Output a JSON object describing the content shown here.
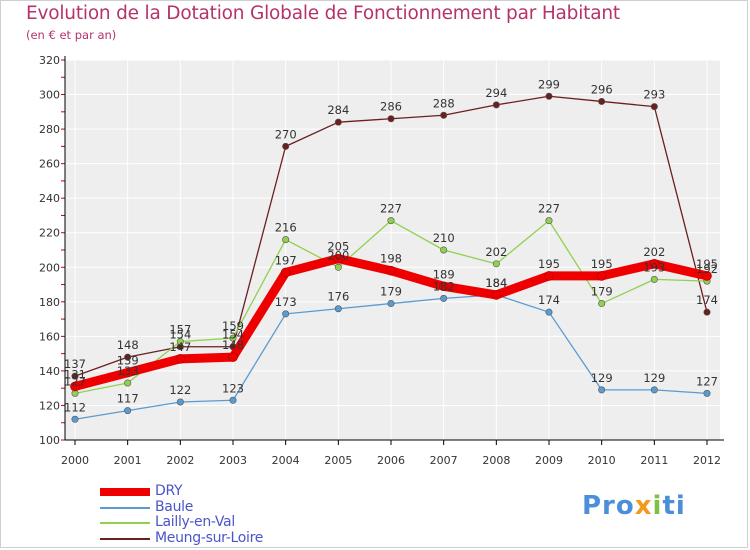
{
  "header": {
    "title": "Evolution de la Dotation Globale de Fonctionnement par Habitant",
    "subtitle": "(en € et par an)"
  },
  "brand": {
    "logo_parts": [
      {
        "text": "Pro",
        "color": "#4a8fd8"
      },
      {
        "text": "x",
        "color": "#f39a1c"
      },
      {
        "text": "i",
        "color": "#7fc243"
      },
      {
        "text": "ti",
        "color": "#4a8fd8"
      }
    ]
  },
  "colors": {
    "plot_background": "#eeeeee",
    "grid": "#ffffff",
    "axis": "#000000",
    "tick_text": "#333333",
    "label_text": "#333333"
  },
  "chart_data": {
    "type": "line",
    "title": "Evolution de la Dotation Globale de Fonctionnement par Habitant",
    "subtitle": "(en € et par an)",
    "xlabel": "",
    "ylabel": "",
    "x": [
      "2000",
      "2001",
      "2002",
      "2003",
      "2004",
      "2005",
      "2006",
      "2007",
      "2008",
      "2009",
      "2010",
      "2011",
      "2012"
    ],
    "ylim": [
      100,
      320
    ],
    "yticks": [
      100,
      120,
      140,
      160,
      180,
      200,
      220,
      240,
      260,
      280,
      300,
      320
    ],
    "grid": true,
    "legend_position": "bottom-left",
    "series": [
      {
        "name": "DRY",
        "color": "#ee0000",
        "style": "thick",
        "values": [
          131,
          139,
          147,
          148,
          197,
          205,
          198,
          189,
          184,
          195,
          195,
          202,
          195
        ],
        "labels": [
          "131",
          "139",
          "147",
          "148",
          "197",
          "205",
          "198",
          "189",
          "184",
          "195",
          "195",
          "202",
          "195"
        ]
      },
      {
        "name": "Baule",
        "color": "#5a9bd0",
        "style": "thin",
        "values": [
          112,
          117,
          122,
          123,
          173,
          176,
          179,
          182,
          184,
          174,
          129,
          129,
          127
        ],
        "labels": [
          "112",
          "117",
          "122",
          "123",
          "173",
          "176",
          "179",
          "182",
          "184",
          "174",
          "129",
          "129",
          "127"
        ]
      },
      {
        "name": "Lailly-en-Val",
        "color": "#92d050",
        "style": "thin",
        "values": [
          127,
          133,
          157,
          159,
          216,
          200,
          227,
          210,
          202,
          227,
          179,
          193,
          192
        ],
        "labels": [
          "127",
          "133",
          "157",
          "159",
          "216",
          "200",
          "227",
          "210",
          "202",
          "227",
          "179",
          "193",
          "192"
        ]
      },
      {
        "name": "Meung-sur-Loire",
        "color": "#6b2020",
        "style": "thin",
        "values": [
          137,
          148,
          154,
          154,
          270,
          284,
          286,
          288,
          294,
          299,
          296,
          293,
          174
        ],
        "labels": [
          "137",
          "148",
          "154",
          "154",
          "270",
          "284",
          "286",
          "288",
          "294",
          "299",
          "296",
          "293",
          "174"
        ]
      }
    ]
  }
}
